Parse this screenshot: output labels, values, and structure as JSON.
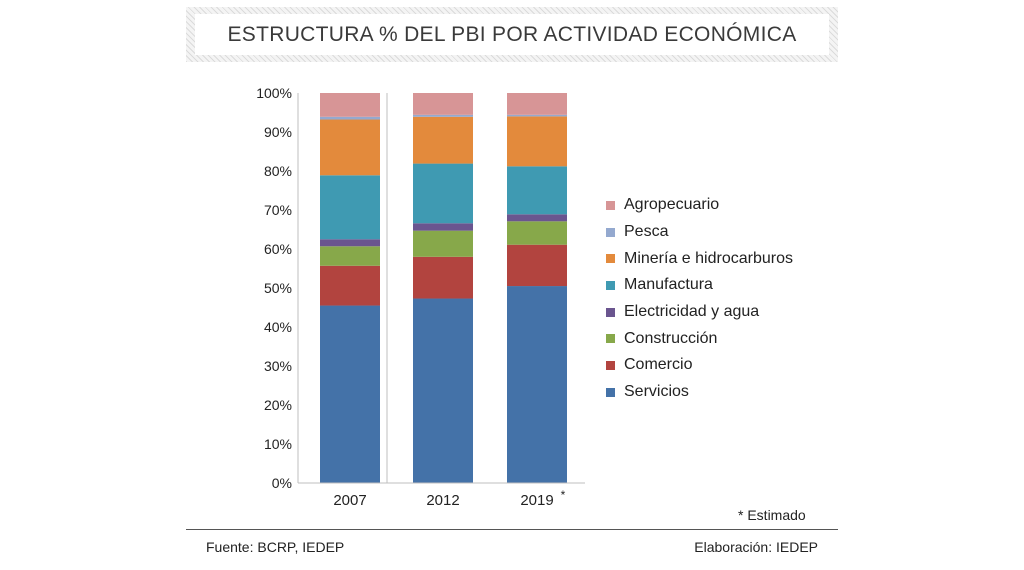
{
  "title": "ESTRUCTURA % DEL PBI POR ACTIVIDAD ECONÓMICA",
  "note": "* Estimado",
  "source": "Fuente: BCRP, IEDEP",
  "credit": "Elaboración: IEDEP",
  "colors": {
    "Servicios": "#4472a8",
    "Comercio": "#b2443f",
    "Construcción": "#87a84a",
    "Electricidad y agua": "#6a558f",
    "Manufactura": "#3f9ab2",
    "Minería e hidrocarburos": "#e38a3c",
    "Pesca": "#94a9cf",
    "Agropecuario": "#d79596"
  },
  "chart_data": {
    "type": "bar",
    "stacked": true,
    "title": "ESTRUCTURA % DEL PBI POR ACTIVIDAD ECONÓMICA",
    "categories": [
      "2007",
      "2012",
      "2019"
    ],
    "category_marks": [
      "",
      "",
      "*"
    ],
    "ylim": [
      0,
      100
    ],
    "yticks": [
      "0%",
      "10%",
      "20%",
      "30%",
      "40%",
      "50%",
      "60%",
      "70%",
      "80%",
      "90%",
      "100%"
    ],
    "legend_position": "right",
    "series": [
      {
        "name": "Servicios",
        "values": [
          45.5,
          47.3,
          50.5
        ]
      },
      {
        "name": "Comercio",
        "values": [
          10.2,
          10.7,
          10.6
        ]
      },
      {
        "name": "Construcción",
        "values": [
          5.0,
          6.7,
          6.0
        ]
      },
      {
        "name": "Electricidad y agua",
        "values": [
          1.8,
          1.9,
          1.8
        ]
      },
      {
        "name": "Manufactura",
        "values": [
          16.4,
          15.3,
          12.3
        ]
      },
      {
        "name": "Minería e hidrocarburos",
        "values": [
          14.3,
          12.0,
          12.8
        ]
      },
      {
        "name": "Pesca",
        "values": [
          0.7,
          0.5,
          0.4
        ]
      },
      {
        "name": "Agropecuario",
        "values": [
          6.1,
          5.6,
          5.6
        ]
      }
    ]
  }
}
